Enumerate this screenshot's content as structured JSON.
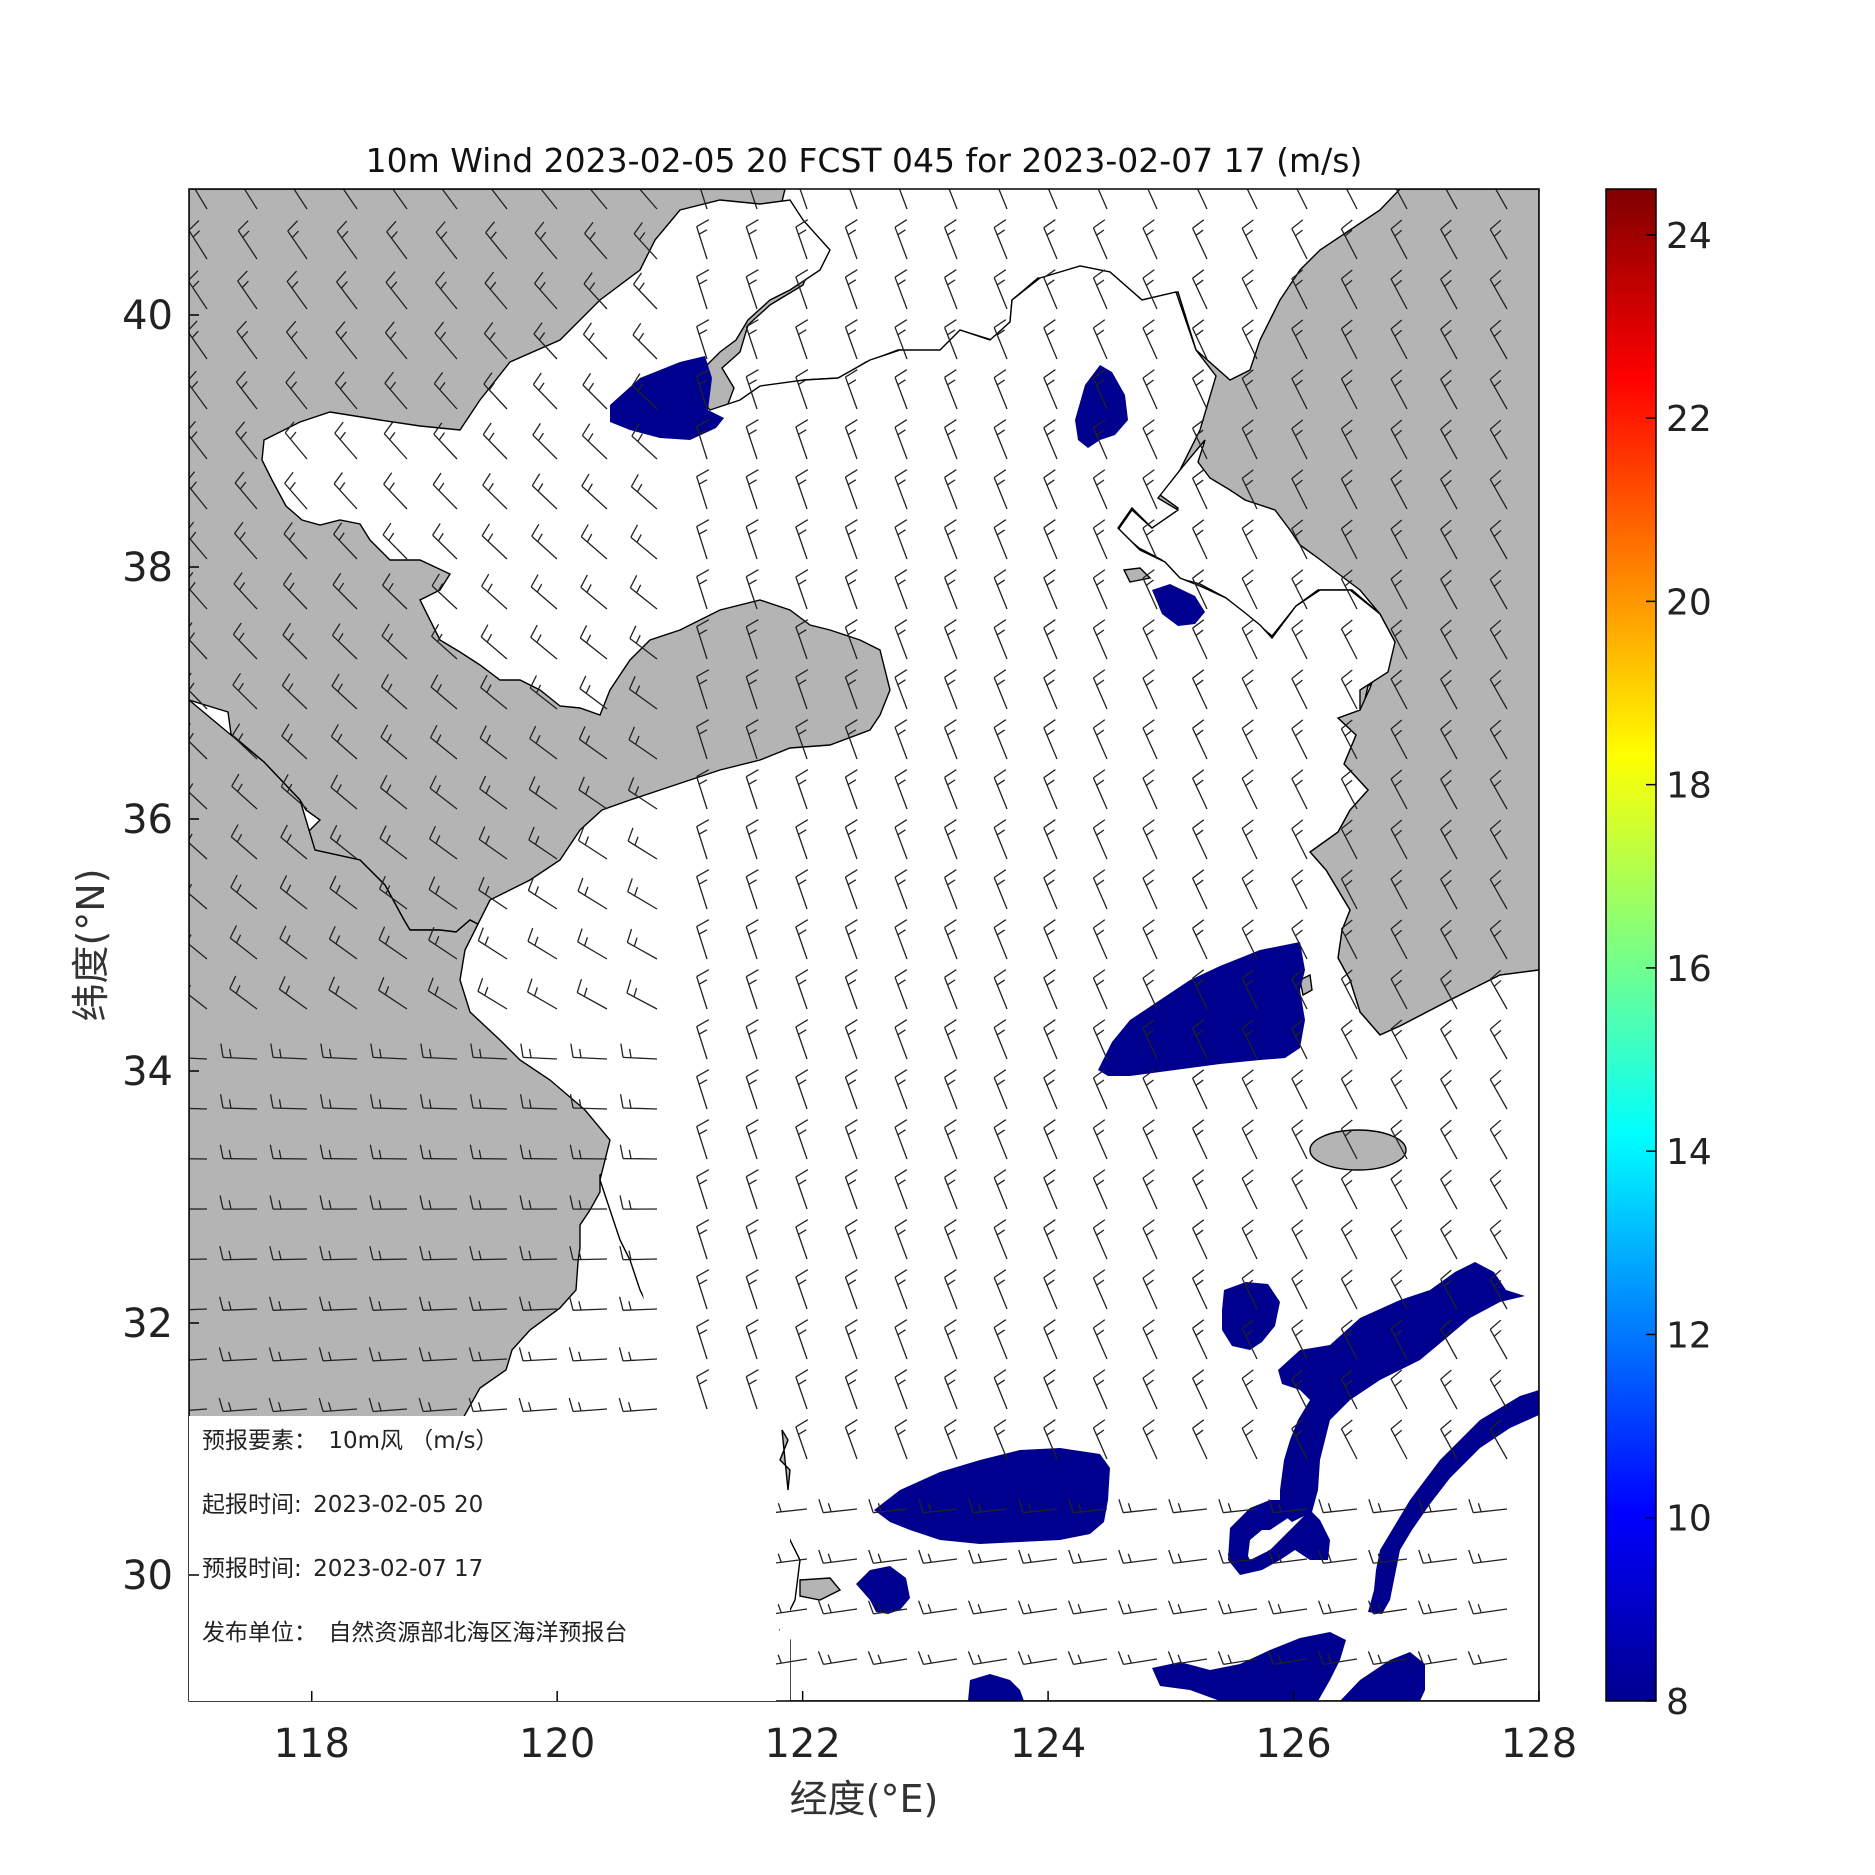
{
  "figure": {
    "title": "10m Wind 2023-02-05 20 FCST 045 for 2023-02-07 17 (m/s)",
    "xlabel": "经度(°E)",
    "ylabel": "纬度(°N)"
  },
  "map": {
    "lon_range": [
      117,
      128
    ],
    "lat_range": [
      29,
      41
    ],
    "lon_ticks": [
      "118",
      "120",
      "122",
      "124",
      "126",
      "128"
    ],
    "lat_ticks": [
      "30",
      "32",
      "34",
      "36",
      "38",
      "40"
    ],
    "land_color": "#b4b4b4",
    "sea_color": "#ffffff",
    "high_wind_color": "#00008f"
  },
  "colorbar": {
    "ticks": [
      "8",
      "10",
      "12",
      "14",
      "16",
      "18",
      "20",
      "22",
      "24"
    ],
    "range": [
      8,
      24.5
    ],
    "colormap": "jet"
  },
  "info_box": {
    "element_label": "预报要素：",
    "element_value": "10m风 （m/s）",
    "init_label": "起报时间:",
    "init_value": "2023-02-05 20",
    "valid_label": "预报时间:",
    "valid_value": "2023-02-07 17",
    "issuer_label": "发布单位：",
    "issuer_value": "自然资源部北海区海洋预报台"
  },
  "wind_field": {
    "description_units": "m/s",
    "barb_color": "#222222"
  }
}
